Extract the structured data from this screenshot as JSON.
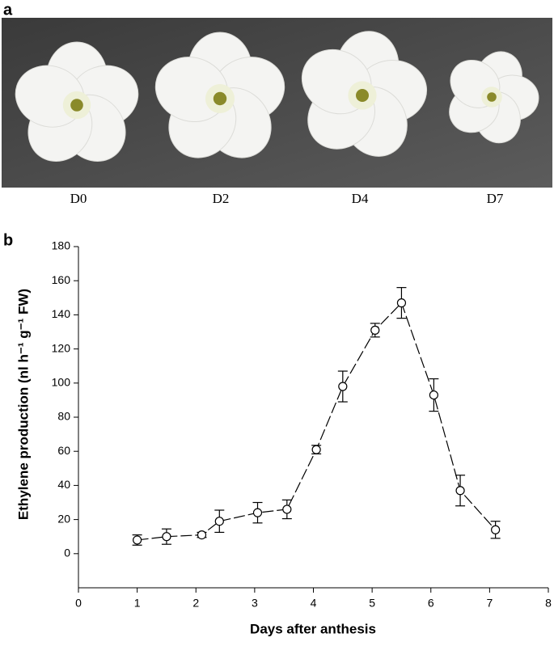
{
  "panel_labels": [
    "a",
    "b"
  ],
  "photo_captions": [
    "D0",
    "D2",
    "D4",
    "D7"
  ],
  "chart_data": {
    "type": "line",
    "xlabel": "Days after anthesis",
    "ylabel": "Ethylene production (nl h⁻¹ g⁻¹ FW)",
    "x": [
      1.0,
      1.5,
      2.1,
      2.4,
      3.05,
      3.55,
      4.05,
      4.5,
      5.05,
      5.5,
      6.05,
      6.5,
      7.1
    ],
    "values": [
      8,
      10,
      11,
      19,
      24,
      26,
      61,
      98,
      131,
      147,
      93,
      37,
      14
    ],
    "errors": [
      3,
      4.5,
      1.5,
      6.5,
      6,
      5.5,
      2.5,
      9,
      4,
      9,
      9.5,
      9,
      5
    ],
    "color": "#000000",
    "xlim": [
      0,
      8
    ],
    "xticks": [
      0,
      1,
      2,
      3,
      4,
      5,
      6,
      7,
      8
    ],
    "ylim": [
      -20,
      180
    ],
    "yticks": [
      0,
      20,
      40,
      60,
      80,
      100,
      120,
      140,
      160,
      180
    ]
  }
}
